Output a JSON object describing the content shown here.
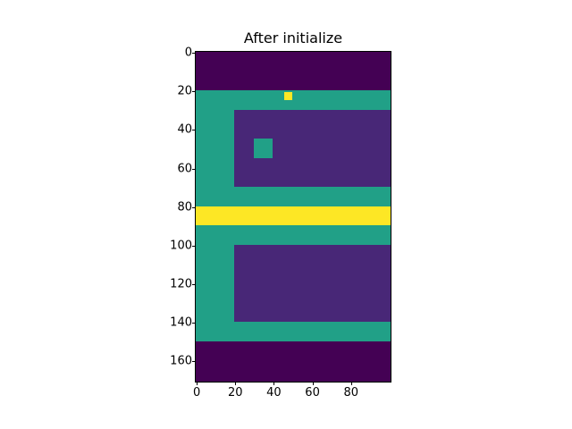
{
  "chart_data": {
    "type": "heatmap",
    "title": "After initialize",
    "xlabel": "",
    "ylabel": "",
    "shape": [
      171,
      101
    ],
    "xlim": [
      0,
      101
    ],
    "ylim": [
      171,
      0
    ],
    "colormap": "viridis",
    "xticks": [
      0,
      20,
      40,
      60,
      80
    ],
    "yticks": [
      0,
      20,
      40,
      60,
      80,
      100,
      120,
      140,
      160
    ],
    "background_value_color": "#440154",
    "regions": [
      {
        "name": "top-border",
        "x0": 0,
        "x1": 101,
        "y0": 0,
        "y1": 20,
        "color": "#440154"
      },
      {
        "name": "green-frame",
        "x0": 0,
        "x1": 101,
        "y0": 20,
        "y1": 150,
        "color": "#21a087"
      },
      {
        "name": "upper-room",
        "x0": 20,
        "x1": 101,
        "y0": 30,
        "y1": 70,
        "color": "#482777"
      },
      {
        "name": "green-square",
        "x0": 30,
        "x1": 40,
        "y0": 45,
        "y1": 55,
        "color": "#21a087"
      },
      {
        "name": "yellow-band",
        "x0": 0,
        "x1": 101,
        "y0": 80,
        "y1": 90,
        "color": "#fde725"
      },
      {
        "name": "lower-room",
        "x0": 20,
        "x1": 101,
        "y0": 100,
        "y1": 140,
        "color": "#482777"
      },
      {
        "name": "yellow-dot",
        "x0": 46,
        "x1": 50,
        "y0": 21,
        "y1": 25,
        "color": "#fde725"
      },
      {
        "name": "bottom-border",
        "x0": 0,
        "x1": 101,
        "y0": 150,
        "y1": 171,
        "color": "#440154"
      }
    ]
  }
}
